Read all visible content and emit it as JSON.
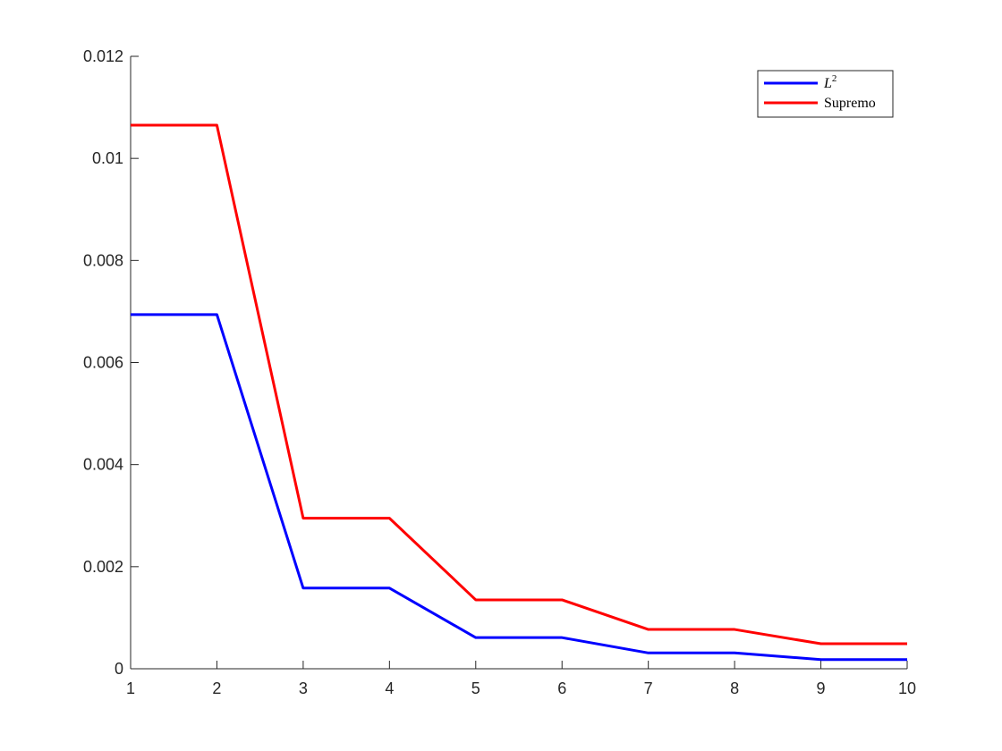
{
  "chart_data": {
    "type": "line",
    "title": "",
    "xlabel": "",
    "ylabel": "",
    "x": [
      1,
      2,
      3,
      4,
      5,
      6,
      7,
      8,
      9,
      10
    ],
    "xlim": [
      1,
      10
    ],
    "ylim": [
      0,
      0.012
    ],
    "xticks": [
      1,
      2,
      3,
      4,
      5,
      6,
      7,
      8,
      9,
      10
    ],
    "xtick_labels": [
      "1",
      "2",
      "3",
      "4",
      "5",
      "6",
      "7",
      "8",
      "9",
      "10"
    ],
    "yticks": [
      0,
      0.002,
      0.004,
      0.006,
      0.008,
      0.01,
      0.012
    ],
    "ytick_labels": [
      "0",
      "0.002",
      "0.004",
      "0.006",
      "0.008",
      "0.01",
      "0.012"
    ],
    "grid": false,
    "legend_position": "top-right",
    "series": [
      {
        "name": "L",
        "name_superscript": "2",
        "color": "#0000ff",
        "values": [
          0.00694,
          0.00694,
          0.00158,
          0.00158,
          0.00061,
          0.00061,
          0.00031,
          0.00031,
          0.00018,
          0.00018
        ]
      },
      {
        "name": "Supremo",
        "name_superscript": "",
        "color": "#ff0000",
        "values": [
          0.01065,
          0.01065,
          0.00295,
          0.00295,
          0.00135,
          0.00135,
          0.00077,
          0.00077,
          0.00049,
          0.00049
        ]
      }
    ]
  }
}
